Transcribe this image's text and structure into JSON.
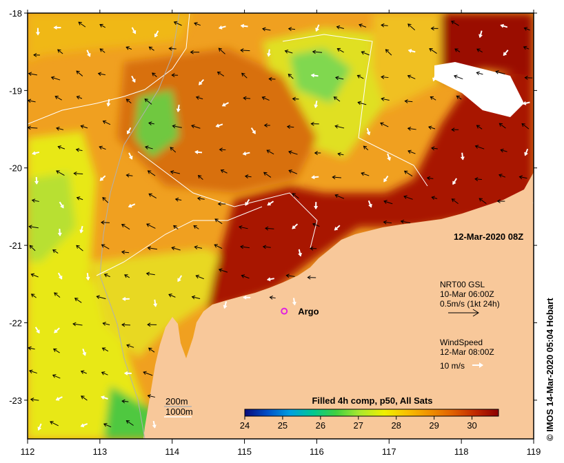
{
  "map": {
    "date_label": "12-Mar-2020 08Z",
    "colorbar": {
      "title": "Filled 4h comp, p50, All Sats",
      "ticks": [
        "24",
        "25",
        "26",
        "27",
        "28",
        "29",
        "30"
      ],
      "min": 24,
      "max": 30.7,
      "colors": [
        "#0a0a7a",
        "#0050c8",
        "#00a0e0",
        "#00c890",
        "#40d040",
        "#a8e830",
        "#f0f000",
        "#f8c000",
        "#f09000",
        "#e06000",
        "#c02800",
        "#8c0000"
      ]
    },
    "x_ticks": [
      "112",
      "113",
      "114",
      "115",
      "116",
      "117",
      "118",
      "119"
    ],
    "y_ticks": [
      "-18",
      "-19",
      "-20",
      "-21",
      "-22",
      "-23"
    ],
    "lon_range": [
      112,
      119
    ],
    "lat_range": [
      -23.5,
      -18
    ],
    "current_legend": {
      "title": "NRT00 GSL",
      "time": "10-Mar 06:00Z",
      "scale": "0.5m/s (1kt 24h)"
    },
    "wind_legend": {
      "title": "WindSpeed",
      "time": "12-Mar 08:00Z",
      "scale": "10 m/s"
    },
    "depth_legend": [
      "200m",
      "1000m"
    ],
    "argo": {
      "label": "Argo",
      "lon": 115.55,
      "lat": -21.85
    },
    "credit": "© IMOS 14-Mar-2020 05:04 Hobart",
    "colors": {
      "land": "#f8c89a",
      "frame": "#000000",
      "argo": "#e020e0"
    }
  }
}
